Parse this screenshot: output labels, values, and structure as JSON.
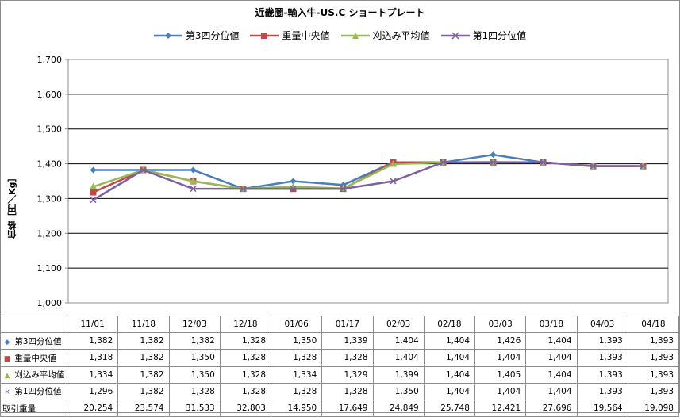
{
  "chart_data": {
    "type": "line",
    "title": "近畿圏-輸入牛-US.C ショートプレート",
    "ylabel": "価格［円／Kg］",
    "ylim": [
      1000,
      1700
    ],
    "yticks": [
      "1,000",
      "1,100",
      "1,200",
      "1,300",
      "1,400",
      "1,500",
      "1,600",
      "1,700"
    ],
    "ytick_values": [
      1000,
      1100,
      1200,
      1300,
      1400,
      1500,
      1600,
      1700
    ],
    "legend_position": "top",
    "grid": true,
    "categories": [
      "11/01",
      "11/18",
      "12/03",
      "12/18",
      "01/06",
      "01/17",
      "02/03",
      "02/18",
      "03/03",
      "03/18",
      "04/03",
      "04/18"
    ],
    "series": [
      {
        "name": "第3四分位値",
        "color": "#4a7ebb",
        "marker": "diamond",
        "values": [
          1382,
          1382,
          1382,
          1328,
          1350,
          1339,
          1404,
          1404,
          1426,
          1404,
          1393,
          1393
        ]
      },
      {
        "name": "重量中央値",
        "color": "#be4b48",
        "marker": "square",
        "values": [
          1318,
          1382,
          1350,
          1328,
          1328,
          1328,
          1404,
          1404,
          1404,
          1404,
          1393,
          1393
        ]
      },
      {
        "name": "刈込み平均値",
        "color": "#98b954",
        "marker": "triangle",
        "values": [
          1334,
          1382,
          1350,
          1328,
          1334,
          1329,
          1399,
          1404,
          1405,
          1404,
          1393,
          1393
        ]
      },
      {
        "name": "第1四分位値",
        "color": "#7d60a0",
        "marker": "x",
        "values": [
          1296,
          1382,
          1328,
          1328,
          1328,
          1328,
          1350,
          1404,
          1404,
          1404,
          1393,
          1393
        ]
      }
    ],
    "table": {
      "series_labels": [
        "第3四分位値",
        "重量中央値",
        "刈込み平均値",
        "第1四分位値"
      ],
      "rows": [
        [
          "1,382",
          "1,382",
          "1,382",
          "1,328",
          "1,350",
          "1,339",
          "1,404",
          "1,404",
          "1,426",
          "1,404",
          "1,393",
          "1,393"
        ],
        [
          "1,318",
          "1,382",
          "1,350",
          "1,328",
          "1,328",
          "1,328",
          "1,404",
          "1,404",
          "1,404",
          "1,404",
          "1,393",
          "1,393"
        ],
        [
          "1,334",
          "1,382",
          "1,350",
          "1,328",
          "1,334",
          "1,329",
          "1,399",
          "1,404",
          "1,405",
          "1,404",
          "1,393",
          "1,393"
        ],
        [
          "1,296",
          "1,382",
          "1,328",
          "1,328",
          "1,328",
          "1,328",
          "1,350",
          "1,404",
          "1,404",
          "1,404",
          "1,393",
          "1,393"
        ]
      ],
      "volume_label": "取引重量",
      "volume": [
        "20,254",
        "23,574",
        "31,533",
        "32,803",
        "14,950",
        "17,649",
        "24,849",
        "25,748",
        "12,421",
        "27,696",
        "19,564",
        "19,098"
      ]
    }
  }
}
